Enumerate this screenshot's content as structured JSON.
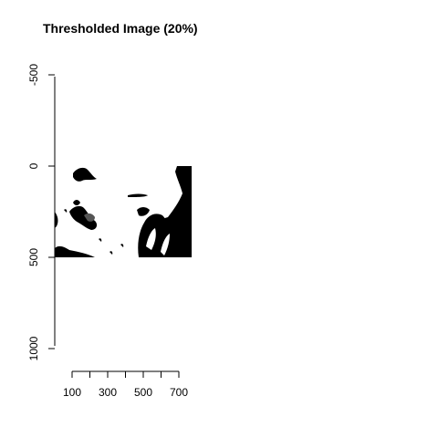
{
  "chart_data": {
    "type": "image",
    "title": "Thresholded Image (20%)",
    "xlabel": "",
    "ylabel": "",
    "x_ticks": [
      100,
      200,
      300,
      400,
      500,
      600,
      700
    ],
    "x_tick_labels": [
      "100",
      "300",
      "500",
      "700"
    ],
    "y_ticks": [
      -500,
      0,
      500,
      1000
    ],
    "y_tick_labels": [
      "-500",
      "0",
      "500",
      "1000"
    ],
    "xlim": [
      0,
      750
    ],
    "ylim": [
      -500,
      1000
    ],
    "y_reversed": true,
    "image_extent": {
      "x": [
        0,
        750
      ],
      "y": [
        0,
        500
      ]
    },
    "colors": {
      "foreground": "#000000",
      "background": "#ffffff"
    },
    "grid": false,
    "legend": "none"
  }
}
